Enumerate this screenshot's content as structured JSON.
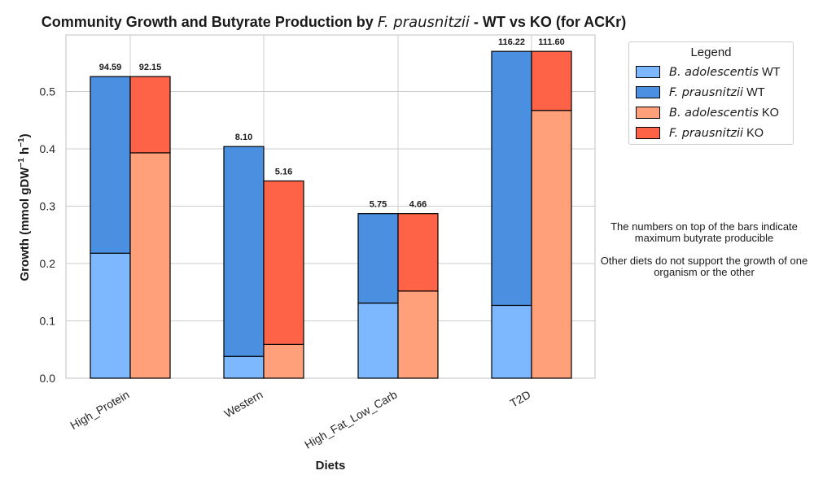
{
  "title": {
    "before": "Community Growth and Butyrate Production by ",
    "organism": "F.  prausnitzii",
    "after": " - WT vs KO (for ACKr)"
  },
  "legend": {
    "title": "Legend",
    "items": [
      {
        "italic": "B.  adolescentis",
        "suffix": "WT",
        "color": "#7db8ff"
      },
      {
        "italic": "F.  prausnitzii",
        "suffix": "WT",
        "color": "#4a8fe0"
      },
      {
        "italic": "B.  adolescentis",
        "suffix": "KO",
        "color": "#ffa07a"
      },
      {
        "italic": "F.  prausnitzii",
        "suffix": "KO",
        "color": "#ff6347"
      }
    ]
  },
  "notes": {
    "line1": "The numbers on top of the bars indicate maximum butyrate producible",
    "line2": "Other diets do not support the growth of one organism or the other"
  },
  "chart_data": {
    "type": "bar",
    "stacked": true,
    "grouped": true,
    "categories": [
      "High_Protein",
      "Western",
      "High_Fat_Low_Carb",
      "T2D"
    ],
    "xlabel": "Diets",
    "ylabel": "Growth (mmol gDW⁻¹ h⁻¹)",
    "ylim": [
      0,
      0.6
    ],
    "yticks": [
      "0.0",
      "0.1",
      "0.2",
      "0.3",
      "0.4",
      "0.5"
    ],
    "grid": true,
    "legend_position": "outside-top-right",
    "series": [
      {
        "name": "B. adolescentis WT",
        "group": "WT",
        "color": "#7db8ff",
        "values": [
          0.218,
          0.038,
          0.131,
          0.127
        ]
      },
      {
        "name": "F. prausnitzii WT",
        "group": "WT",
        "color": "#4a8fe0",
        "values": [
          0.308,
          0.366,
          0.156,
          0.443
        ]
      },
      {
        "name": "B. adolescentis KO",
        "group": "KO",
        "color": "#ffa07a",
        "values": [
          0.393,
          0.059,
          0.152,
          0.467
        ]
      },
      {
        "name": "F. prausnitzii KO",
        "group": "KO",
        "color": "#ff6347",
        "values": [
          0.133,
          0.285,
          0.135,
          0.103
        ]
      }
    ],
    "bar_labels": {
      "WT": [
        "94.59",
        "8.10",
        "5.75",
        "116.22"
      ],
      "KO": [
        "92.15",
        "5.16",
        "4.66",
        "111.60"
      ]
    }
  }
}
